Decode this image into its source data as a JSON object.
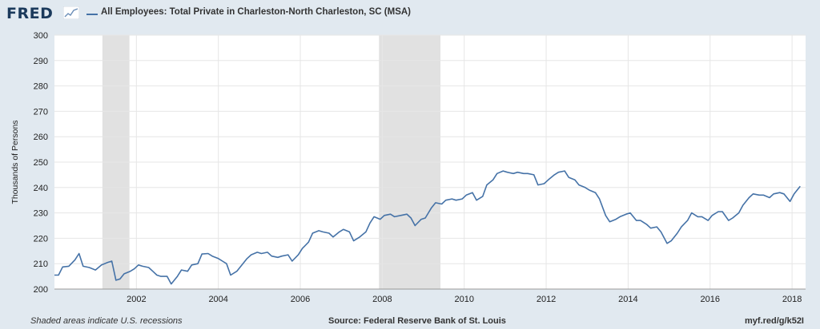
{
  "header": {
    "logo_text": "FRED",
    "title": "All Employees: Total Private in Charleston-North Charleston, SC (MSA)"
  },
  "footer": {
    "note": "Shaded areas indicate U.S. recessions",
    "source": "Source: Federal Reserve Bank of St. Louis",
    "link": "myf.red/g/k52I"
  },
  "colors": {
    "line": "#4572a7",
    "recession": "#e1e1e1",
    "plot_bg": "#ffffff",
    "grid": "#e6e6e6",
    "page_bg": "#e1e9f0"
  },
  "chart_data": {
    "type": "line",
    "title": "All Employees: Total Private in Charleston-North Charleston, SC (MSA)",
    "xlabel": "",
    "ylabel": "Thousands of Persons",
    "xlim": [
      2000.0,
      2018.33
    ],
    "ylim": [
      200,
      300
    ],
    "x_ticks": [
      2002,
      2004,
      2006,
      2008,
      2010,
      2012,
      2014,
      2016,
      2018
    ],
    "y_ticks": [
      200,
      210,
      220,
      230,
      240,
      250,
      260,
      270,
      280,
      290,
      300
    ],
    "grid": true,
    "recessions": [
      [
        2001.17,
        2001.83
      ],
      [
        2007.92,
        2009.42
      ]
    ],
    "series": [
      {
        "name": "All Employees: Total Private in Charleston-North Charleston, SC (MSA)",
        "points": [
          [
            2000.0,
            205.5
          ],
          [
            2000.1,
            205.5
          ],
          [
            2000.2,
            208.7
          ],
          [
            2000.35,
            209.0
          ],
          [
            2000.5,
            211.5
          ],
          [
            2000.6,
            214.0
          ],
          [
            2000.7,
            209.0
          ],
          [
            2000.85,
            208.5
          ],
          [
            2001.0,
            207.5
          ],
          [
            2001.15,
            209.5
          ],
          [
            2001.3,
            210.5
          ],
          [
            2001.4,
            211.0
          ],
          [
            2001.5,
            203.5
          ],
          [
            2001.6,
            204.0
          ],
          [
            2001.7,
            206.0
          ],
          [
            2001.85,
            207.0
          ],
          [
            2001.95,
            208.0
          ],
          [
            2002.05,
            209.5
          ],
          [
            2002.15,
            209.0
          ],
          [
            2002.3,
            208.5
          ],
          [
            2002.4,
            207.0
          ],
          [
            2002.5,
            205.5
          ],
          [
            2002.6,
            205.0
          ],
          [
            2002.75,
            205.0
          ],
          [
            2002.85,
            202.0
          ],
          [
            2003.0,
            205.0
          ],
          [
            2003.1,
            207.5
          ],
          [
            2003.25,
            207.0
          ],
          [
            2003.35,
            209.5
          ],
          [
            2003.5,
            210.0
          ],
          [
            2003.6,
            213.8
          ],
          [
            2003.75,
            214.0
          ],
          [
            2003.85,
            213.0
          ],
          [
            2004.0,
            212.0
          ],
          [
            2004.1,
            211.0
          ],
          [
            2004.2,
            210.0
          ],
          [
            2004.3,
            205.5
          ],
          [
            2004.45,
            207.0
          ],
          [
            2004.55,
            209.0
          ],
          [
            2004.7,
            212.0
          ],
          [
            2004.8,
            213.5
          ],
          [
            2004.95,
            214.5
          ],
          [
            2005.05,
            214.0
          ],
          [
            2005.2,
            214.5
          ],
          [
            2005.3,
            213.0
          ],
          [
            2005.45,
            212.5
          ],
          [
            2005.55,
            213.0
          ],
          [
            2005.7,
            213.5
          ],
          [
            2005.8,
            211.0
          ],
          [
            2005.95,
            213.5
          ],
          [
            2006.05,
            216.0
          ],
          [
            2006.2,
            218.5
          ],
          [
            2006.3,
            222.0
          ],
          [
            2006.45,
            223.0
          ],
          [
            2006.55,
            222.5
          ],
          [
            2006.7,
            222.0
          ],
          [
            2006.8,
            220.5
          ],
          [
            2006.95,
            222.5
          ],
          [
            2007.05,
            223.5
          ],
          [
            2007.2,
            222.5
          ],
          [
            2007.3,
            219.0
          ],
          [
            2007.45,
            220.5
          ],
          [
            2007.6,
            222.5
          ],
          [
            2007.7,
            226.0
          ],
          [
            2007.8,
            228.5
          ],
          [
            2007.95,
            227.5
          ],
          [
            2008.05,
            229.0
          ],
          [
            2008.2,
            229.5
          ],
          [
            2008.3,
            228.5
          ],
          [
            2008.45,
            229.0
          ],
          [
            2008.6,
            229.5
          ],
          [
            2008.7,
            228.0
          ],
          [
            2008.8,
            225.0
          ],
          [
            2008.95,
            227.5
          ],
          [
            2009.05,
            228.0
          ],
          [
            2009.2,
            232.0
          ],
          [
            2009.3,
            234.0
          ],
          [
            2009.45,
            233.5
          ],
          [
            2009.55,
            235.0
          ],
          [
            2009.7,
            235.5
          ],
          [
            2009.8,
            235.0
          ],
          [
            2009.95,
            235.5
          ],
          [
            2010.05,
            237.0
          ],
          [
            2010.2,
            238.0
          ],
          [
            2010.3,
            235.0
          ],
          [
            2010.45,
            236.5
          ],
          [
            2010.55,
            241.0
          ],
          [
            2010.7,
            243.0
          ],
          [
            2010.8,
            245.5
          ],
          [
            2010.95,
            246.5
          ],
          [
            2011.05,
            246.0
          ],
          [
            2011.2,
            245.5
          ],
          [
            2011.3,
            246.0
          ],
          [
            2011.45,
            245.5
          ],
          [
            2011.55,
            245.5
          ],
          [
            2011.7,
            245.0
          ],
          [
            2011.8,
            241.0
          ],
          [
            2011.95,
            241.5
          ],
          [
            2012.05,
            243.0
          ],
          [
            2012.2,
            245.0
          ],
          [
            2012.3,
            246.0
          ],
          [
            2012.45,
            246.5
          ],
          [
            2012.55,
            244.0
          ],
          [
            2012.7,
            243.0
          ],
          [
            2012.8,
            241.0
          ],
          [
            2012.95,
            240.0
          ],
          [
            2013.05,
            239.0
          ],
          [
            2013.2,
            238.0
          ],
          [
            2013.3,
            235.5
          ],
          [
            2013.45,
            229.0
          ],
          [
            2013.55,
            226.5
          ],
          [
            2013.7,
            227.5
          ],
          [
            2013.8,
            228.5
          ],
          [
            2013.95,
            229.5
          ],
          [
            2014.05,
            230.0
          ],
          [
            2014.2,
            227.0
          ],
          [
            2014.3,
            227.0
          ],
          [
            2014.45,
            225.5
          ],
          [
            2014.55,
            224.0
          ],
          [
            2014.7,
            224.5
          ],
          [
            2014.8,
            222.5
          ],
          [
            2014.95,
            218.0
          ],
          [
            2015.05,
            219.0
          ],
          [
            2015.2,
            222.0
          ],
          [
            2015.3,
            224.5
          ],
          [
            2015.45,
            227.0
          ],
          [
            2015.55,
            230.0
          ],
          [
            2015.7,
            228.5
          ],
          [
            2015.8,
            228.5
          ],
          [
            2015.95,
            227.0
          ],
          [
            2016.05,
            229.0
          ],
          [
            2016.2,
            230.5
          ],
          [
            2016.3,
            230.5
          ],
          [
            2016.45,
            227.0
          ],
          [
            2016.55,
            228.0
          ],
          [
            2016.7,
            230.0
          ],
          [
            2016.8,
            233.0
          ],
          [
            2016.95,
            236.0
          ],
          [
            2017.05,
            237.5
          ],
          [
            2017.2,
            237.0
          ],
          [
            2017.3,
            237.0
          ],
          [
            2017.45,
            236.0
          ],
          [
            2017.55,
            237.5
          ],
          [
            2017.7,
            238.0
          ],
          [
            2017.8,
            237.5
          ],
          [
            2017.95,
            234.5
          ],
          [
            2018.05,
            237.5
          ],
          [
            2018.2,
            240.5
          ]
        ]
      }
    ]
  }
}
